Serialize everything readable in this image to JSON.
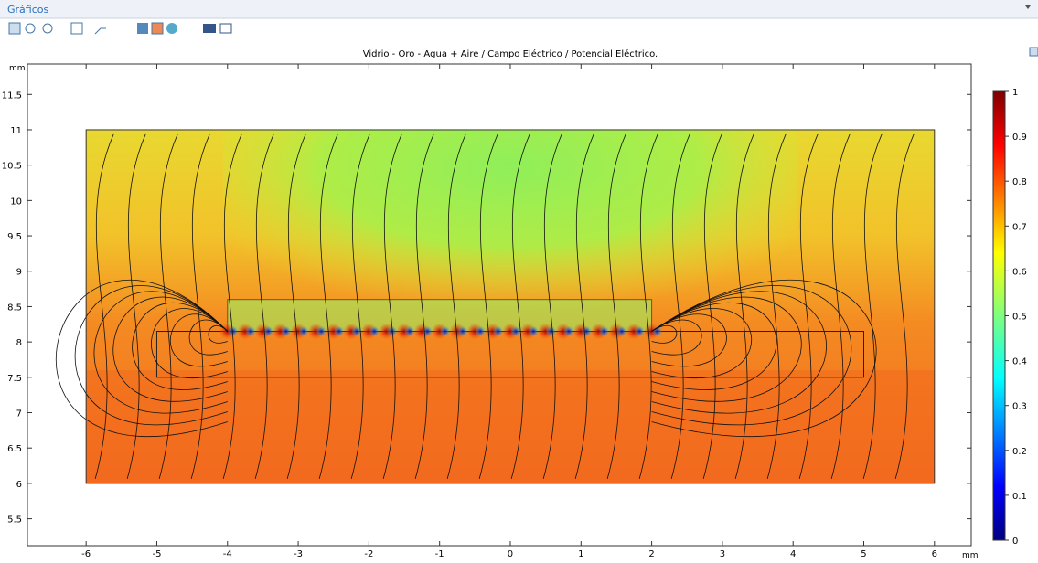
{
  "panel_title": "Gráficos",
  "plot": {
    "title": "Vidrio - Oro - Agua + Aire / Campo Eléctrico / Potencial Eléctrico.",
    "x_unit": "mm",
    "y_unit": "mm",
    "xlim": [
      -6.83,
      6.52
    ],
    "ylim": [
      5.12,
      11.93
    ],
    "xticks": [
      -6,
      -5,
      -4,
      -3,
      -2,
      -1,
      0,
      1,
      2,
      3,
      4,
      5,
      6
    ],
    "yticks": [
      5.5,
      6,
      6.5,
      7,
      7.5,
      8,
      8.5,
      9,
      9.5,
      10,
      10.5,
      11,
      11.5
    ],
    "colorbar": {
      "lim": [
        0,
        1
      ],
      "ticks": [
        0,
        0.1,
        0.2,
        0.3,
        0.4,
        0.5,
        0.6,
        0.7,
        0.8,
        0.9,
        1
      ]
    }
  }
}
